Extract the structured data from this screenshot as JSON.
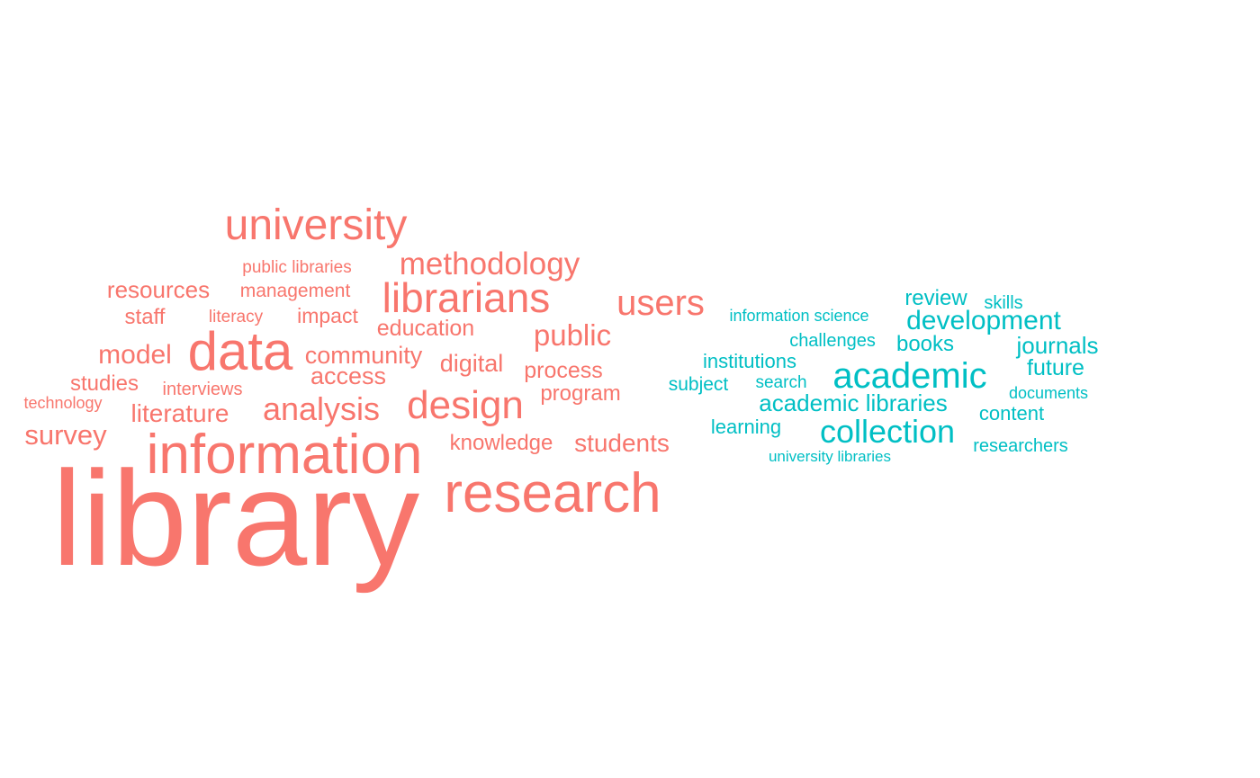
{
  "chart_data": {
    "type": "wordcloud",
    "colors": {
      "group_1": "#F8766D",
      "group_2": "#00BFC4"
    },
    "words": [
      {
        "text": "library",
        "group": "group_1"
      },
      {
        "text": "research",
        "group": "group_1"
      },
      {
        "text": "information",
        "group": "group_1"
      },
      {
        "text": "data",
        "group": "group_1"
      },
      {
        "text": "university",
        "group": "group_1"
      },
      {
        "text": "librarians",
        "group": "group_1"
      },
      {
        "text": "design",
        "group": "group_1"
      },
      {
        "text": "users",
        "group": "group_1"
      },
      {
        "text": "analysis",
        "group": "group_1"
      },
      {
        "text": "methodology",
        "group": "group_1"
      },
      {
        "text": "public",
        "group": "group_1"
      },
      {
        "text": "model",
        "group": "group_1"
      },
      {
        "text": "survey",
        "group": "group_1"
      },
      {
        "text": "community",
        "group": "group_1"
      },
      {
        "text": "access",
        "group": "group_1"
      },
      {
        "text": "literature",
        "group": "group_1"
      },
      {
        "text": "resources",
        "group": "group_1"
      },
      {
        "text": "students",
        "group": "group_1"
      },
      {
        "text": "digital",
        "group": "group_1"
      },
      {
        "text": "education",
        "group": "group_1"
      },
      {
        "text": "process",
        "group": "group_1"
      },
      {
        "text": "studies",
        "group": "group_1"
      },
      {
        "text": "program",
        "group": "group_1"
      },
      {
        "text": "knowledge",
        "group": "group_1"
      },
      {
        "text": "staff",
        "group": "group_1"
      },
      {
        "text": "impact",
        "group": "group_1"
      },
      {
        "text": "management",
        "group": "group_1"
      },
      {
        "text": "interviews",
        "group": "group_1"
      },
      {
        "text": "public libraries",
        "group": "group_1"
      },
      {
        "text": "literacy",
        "group": "group_1"
      },
      {
        "text": "technology",
        "group": "group_1"
      },
      {
        "text": "academic",
        "group": "group_2"
      },
      {
        "text": "collection",
        "group": "group_2"
      },
      {
        "text": "development",
        "group": "group_2"
      },
      {
        "text": "academic libraries",
        "group": "group_2"
      },
      {
        "text": "journals",
        "group": "group_2"
      },
      {
        "text": "books",
        "group": "group_2"
      },
      {
        "text": "future",
        "group": "group_2"
      },
      {
        "text": "review",
        "group": "group_2"
      },
      {
        "text": "institutions",
        "group": "group_2"
      },
      {
        "text": "content",
        "group": "group_2"
      },
      {
        "text": "learning",
        "group": "group_2"
      },
      {
        "text": "subject",
        "group": "group_2"
      },
      {
        "text": "researchers",
        "group": "group_2"
      },
      {
        "text": "challenges",
        "group": "group_2"
      },
      {
        "text": "search",
        "group": "group_2"
      },
      {
        "text": "skills",
        "group": "group_2"
      },
      {
        "text": "information science",
        "group": "group_2"
      },
      {
        "text": "documents",
        "group": "group_2"
      },
      {
        "text": "university libraries",
        "group": "group_2"
      }
    ]
  }
}
